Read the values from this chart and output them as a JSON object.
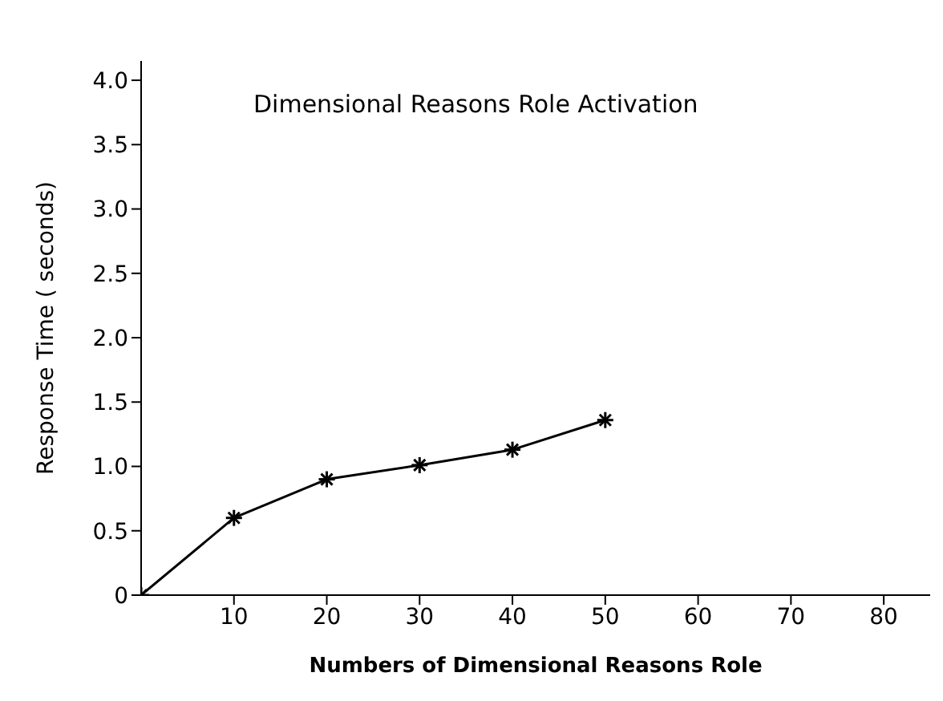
{
  "chart_data": {
    "type": "line",
    "title": "Dimensional Reasons Role Activation",
    "xlabel": "Numbers of Dimensional Reasons Role",
    "ylabel": "Response Time  ( seconds)",
    "x": [
      0,
      10,
      20,
      30,
      40,
      50
    ],
    "series": [
      {
        "color": "#000000",
        "values": [
          0,
          0.6,
          0.9,
          1.01,
          1.13,
          1.36
        ]
      }
    ],
    "xlim": [
      0,
      85
    ],
    "xticks": [
      10,
      20,
      30,
      40,
      50,
      60,
      70,
      80
    ],
    "ylim": [
      0,
      4.15
    ],
    "yticks": [
      0,
      0.5,
      {
        "value": 1,
        "label": "1.0"
      },
      1.5,
      {
        "value": 2,
        "label": "2.0"
      },
      2.5,
      {
        "value": 3,
        "label": "3.0"
      },
      3.5,
      {
        "value": 4,
        "label": "4.0"
      }
    ],
    "marker": "cross",
    "line_style": "solid",
    "grid": false,
    "legend": false
  }
}
